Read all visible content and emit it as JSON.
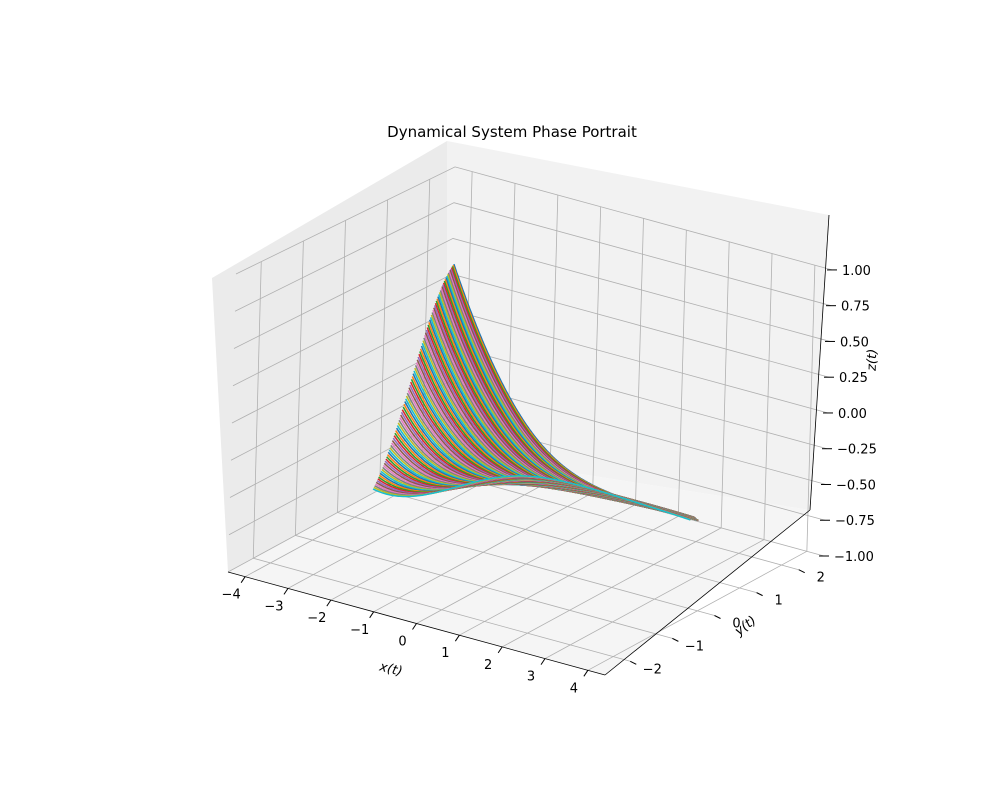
{
  "chart_data": {
    "type": "line",
    "projection": "3d",
    "title": "Dynamical System Phase Portrait",
    "xlabel": "x(t)",
    "ylabel": "y(t)",
    "zlabel": "z(t)",
    "xlim": [
      -4.4,
      4.4
    ],
    "ylim": [
      -2.6,
      2.6
    ],
    "zlim": [
      -1.0,
      1.0
    ],
    "x_ticks": [
      "−4",
      "−3",
      "−2",
      "−1",
      "0",
      "1",
      "2",
      "3",
      "4"
    ],
    "y_ticks": [
      "−2",
      "−1",
      "0",
      "1",
      "2"
    ],
    "z_ticks": [
      "−1.00",
      "−0.75",
      "−0.50",
      "−0.25",
      "0.00",
      "0.25",
      "0.50",
      "0.75",
      "1.00"
    ],
    "grid": true,
    "legend": "none",
    "series_count": 100,
    "colors": [
      "#1f77b4",
      "#ff7f0e",
      "#2ca02c",
      "#d62728",
      "#9467bd",
      "#8c564b",
      "#e377c2",
      "#7f7f7f",
      "#bcbd22",
      "#17becf"
    ]
  }
}
